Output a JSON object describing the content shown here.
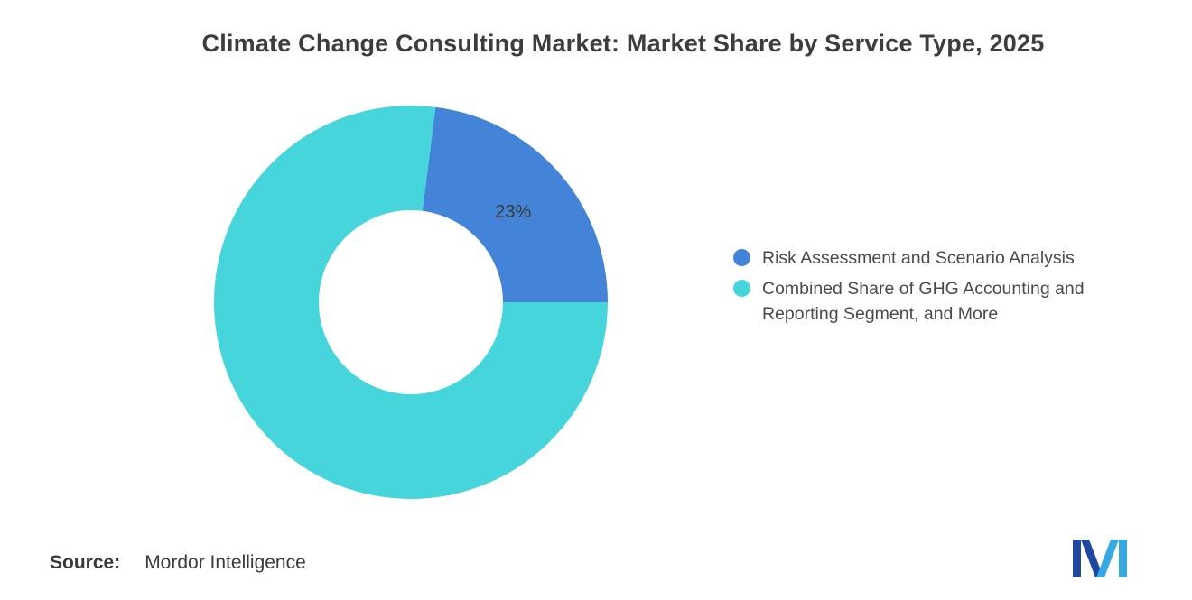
{
  "chart_data": {
    "type": "pie",
    "subtype": "donut",
    "title": "Climate Change Consulting Market: Market Share by Service Type, 2025",
    "units": "%",
    "legend_position": "right",
    "inner_radius_ratio": 0.47,
    "first_slice_end_deg": 90,
    "data_label_color": "#3a3a3a",
    "slices": [
      {
        "label": "Risk Assessment and Scenario Analysis",
        "value": 23,
        "data_label": "23%",
        "color": "#4383d8"
      },
      {
        "label": "Combined Share of GHG Accounting and Reporting Segment, and More",
        "value": 77,
        "data_label": "",
        "color": "#46d5da"
      }
    ]
  },
  "footer": {
    "source_label": "Source:",
    "source_value": "Mordor Intelligence"
  },
  "logo": {
    "name": "mordor-intelligence-logo",
    "dark_color": "#2148a0",
    "light_color": "#36a9e1"
  }
}
